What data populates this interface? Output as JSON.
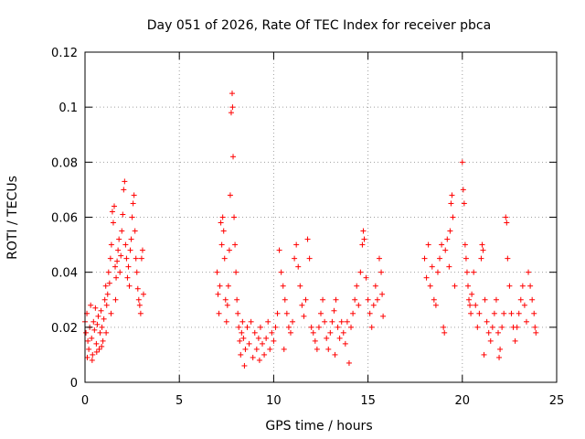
{
  "chart_data": {
    "type": "scatter",
    "title": "Day 051 of 2026, Rate Of TEC Index for receiver pbca",
    "xlabel": "GPS time / hours",
    "ylabel": "ROTI / TECUs",
    "xlim": [
      0,
      25
    ],
    "ylim": [
      0,
      0.12
    ],
    "xticks": [
      0,
      5,
      10,
      15,
      20,
      25
    ],
    "yticks": [
      0,
      0.02,
      0.04,
      0.06,
      0.08,
      0.1,
      0.12
    ],
    "xtick_labels": [
      "0",
      "5",
      "10",
      "15",
      "20",
      "25"
    ],
    "ytick_labels": [
      "0",
      "0.02",
      "0.04",
      "0.06",
      "0.08",
      "0.1",
      "0.12"
    ],
    "grid": true,
    "marker": "+",
    "color": "#ff0000",
    "series": [
      {
        "name": "ROTI",
        "points": [
          [
            0.0,
            0.022
          ],
          [
            0.05,
            0.018
          ],
          [
            0.1,
            0.025
          ],
          [
            0.15,
            0.015
          ],
          [
            0.2,
            0.012
          ],
          [
            0.25,
            0.02
          ],
          [
            0.3,
            0.028
          ],
          [
            0.35,
            0.016
          ],
          [
            0.4,
            0.01
          ],
          [
            0.45,
            0.022
          ],
          [
            0.5,
            0.019
          ],
          [
            0.55,
            0.027
          ],
          [
            0.6,
            0.014
          ],
          [
            0.65,
            0.021
          ],
          [
            0.7,
            0.024
          ],
          [
            0.75,
            0.012
          ],
          [
            0.8,
            0.018
          ],
          [
            0.85,
            0.026
          ],
          [
            0.9,
            0.02
          ],
          [
            0.95,
            0.015
          ],
          [
            1.0,
            0.023
          ],
          [
            1.05,
            0.03
          ],
          [
            1.1,
            0.035
          ],
          [
            1.15,
            0.028
          ],
          [
            1.2,
            0.032
          ],
          [
            1.25,
            0.04
          ],
          [
            1.3,
            0.036
          ],
          [
            1.35,
            0.045
          ],
          [
            1.4,
            0.05
          ],
          [
            1.45,
            0.062
          ],
          [
            1.5,
            0.058
          ],
          [
            1.55,
            0.064
          ],
          [
            1.6,
            0.042
          ],
          [
            1.65,
            0.038
          ],
          [
            1.7,
            0.044
          ],
          [
            1.75,
            0.048
          ],
          [
            1.8,
            0.052
          ],
          [
            1.85,
            0.04
          ],
          [
            1.9,
            0.046
          ],
          [
            1.95,
            0.055
          ],
          [
            2.0,
            0.061
          ],
          [
            2.05,
            0.07
          ],
          [
            2.1,
            0.073
          ],
          [
            2.15,
            0.05
          ],
          [
            2.2,
            0.045
          ],
          [
            2.25,
            0.038
          ],
          [
            2.3,
            0.042
          ],
          [
            2.35,
            0.035
          ],
          [
            2.4,
            0.048
          ],
          [
            2.45,
            0.052
          ],
          [
            2.5,
            0.06
          ],
          [
            2.55,
            0.065
          ],
          [
            2.6,
            0.068
          ],
          [
            2.65,
            0.055
          ],
          [
            2.7,
            0.045
          ],
          [
            2.75,
            0.04
          ],
          [
            2.8,
            0.034
          ],
          [
            2.85,
            0.03
          ],
          [
            2.9,
            0.028
          ],
          [
            2.95,
            0.025
          ],
          [
            3.0,
            0.045
          ],
          [
            3.05,
            0.048
          ],
          [
            3.1,
            0.032
          ],
          [
            0.12,
            0.009
          ],
          [
            0.38,
            0.008
          ],
          [
            0.62,
            0.011
          ],
          [
            0.88,
            0.013
          ],
          [
            1.12,
            0.018
          ],
          [
            1.38,
            0.025
          ],
          [
            1.62,
            0.03
          ],
          [
            7.0,
            0.04
          ],
          [
            7.05,
            0.032
          ],
          [
            7.1,
            0.025
          ],
          [
            7.15,
            0.035
          ],
          [
            7.2,
            0.058
          ],
          [
            7.25,
            0.05
          ],
          [
            7.3,
            0.06
          ],
          [
            7.35,
            0.055
          ],
          [
            7.4,
            0.045
          ],
          [
            7.45,
            0.03
          ],
          [
            7.5,
            0.022
          ],
          [
            7.55,
            0.028
          ],
          [
            7.6,
            0.035
          ],
          [
            7.65,
            0.048
          ],
          [
            7.7,
            0.068
          ],
          [
            7.75,
            0.098
          ],
          [
            7.8,
            0.105
          ],
          [
            7.82,
            0.1
          ],
          [
            7.85,
            0.082
          ],
          [
            7.9,
            0.06
          ],
          [
            7.95,
            0.05
          ],
          [
            8.0,
            0.04
          ],
          [
            8.05,
            0.03
          ],
          [
            8.1,
            0.025
          ],
          [
            8.15,
            0.02
          ],
          [
            8.2,
            0.015
          ],
          [
            8.25,
            0.01
          ],
          [
            8.3,
            0.018
          ],
          [
            8.35,
            0.022
          ],
          [
            8.4,
            0.016
          ],
          [
            8.5,
            0.012
          ],
          [
            8.6,
            0.02
          ],
          [
            8.7,
            0.014
          ],
          [
            8.8,
            0.022
          ],
          [
            8.9,
            0.009
          ],
          [
            9.0,
            0.018
          ],
          [
            9.1,
            0.012
          ],
          [
            9.2,
            0.016
          ],
          [
            9.3,
            0.02
          ],
          [
            9.4,
            0.014
          ],
          [
            9.5,
            0.01
          ],
          [
            9.6,
            0.016
          ],
          [
            9.7,
            0.022
          ],
          [
            9.8,
            0.012
          ],
          [
            9.9,
            0.018
          ],
          [
            10.0,
            0.015
          ],
          [
            10.1,
            0.02
          ],
          [
            10.2,
            0.025
          ],
          [
            10.3,
            0.048
          ],
          [
            10.4,
            0.04
          ],
          [
            10.5,
            0.035
          ],
          [
            10.6,
            0.03
          ],
          [
            10.7,
            0.025
          ],
          [
            10.8,
            0.02
          ],
          [
            10.9,
            0.018
          ],
          [
            11.0,
            0.022
          ],
          [
            11.1,
            0.045
          ],
          [
            11.2,
            0.05
          ],
          [
            11.3,
            0.042
          ],
          [
            11.4,
            0.035
          ],
          [
            11.5,
            0.028
          ],
          [
            11.6,
            0.024
          ],
          [
            11.7,
            0.03
          ],
          [
            11.8,
            0.052
          ],
          [
            11.9,
            0.045
          ],
          [
            12.0,
            0.02
          ],
          [
            12.1,
            0.018
          ],
          [
            12.2,
            0.015
          ],
          [
            12.3,
            0.012
          ],
          [
            12.4,
            0.02
          ],
          [
            12.5,
            0.025
          ],
          [
            12.6,
            0.03
          ],
          [
            12.7,
            0.022
          ],
          [
            12.8,
            0.016
          ],
          [
            12.9,
            0.012
          ],
          [
            13.0,
            0.018
          ],
          [
            13.1,
            0.022
          ],
          [
            13.2,
            0.026
          ],
          [
            13.3,
            0.03
          ],
          [
            13.4,
            0.02
          ],
          [
            13.5,
            0.016
          ],
          [
            13.6,
            0.022
          ],
          [
            13.7,
            0.018
          ],
          [
            13.8,
            0.014
          ],
          [
            13.9,
            0.022
          ],
          [
            14.0,
            0.007
          ],
          [
            14.1,
            0.02
          ],
          [
            14.2,
            0.025
          ],
          [
            14.3,
            0.03
          ],
          [
            14.4,
            0.035
          ],
          [
            14.5,
            0.028
          ],
          [
            14.6,
            0.04
          ],
          [
            14.7,
            0.05
          ],
          [
            14.75,
            0.055
          ],
          [
            14.8,
            0.052
          ],
          [
            14.9,
            0.038
          ],
          [
            15.0,
            0.03
          ],
          [
            15.1,
            0.025
          ],
          [
            15.2,
            0.02
          ],
          [
            15.3,
            0.028
          ],
          [
            15.4,
            0.035
          ],
          [
            15.5,
            0.03
          ],
          [
            15.6,
            0.045
          ],
          [
            15.7,
            0.04
          ],
          [
            15.75,
            0.032
          ],
          [
            15.8,
            0.024
          ],
          [
            8.45,
            0.006
          ],
          [
            9.25,
            0.008
          ],
          [
            10.55,
            0.012
          ],
          [
            13.25,
            0.01
          ],
          [
            18.0,
            0.045
          ],
          [
            18.1,
            0.038
          ],
          [
            18.2,
            0.05
          ],
          [
            18.3,
            0.035
          ],
          [
            18.4,
            0.042
          ],
          [
            18.5,
            0.03
          ],
          [
            18.6,
            0.028
          ],
          [
            18.7,
            0.04
          ],
          [
            18.8,
            0.045
          ],
          [
            18.9,
            0.05
          ],
          [
            19.0,
            0.02
          ],
          [
            19.05,
            0.018
          ],
          [
            19.1,
            0.048
          ],
          [
            19.2,
            0.052
          ],
          [
            19.3,
            0.042
          ],
          [
            19.35,
            0.055
          ],
          [
            19.4,
            0.065
          ],
          [
            19.45,
            0.068
          ],
          [
            19.5,
            0.06
          ],
          [
            19.6,
            0.035
          ],
          [
            20.0,
            0.08
          ],
          [
            20.05,
            0.07
          ],
          [
            20.1,
            0.065
          ],
          [
            20.15,
            0.05
          ],
          [
            20.2,
            0.045
          ],
          [
            20.25,
            0.04
          ],
          [
            20.3,
            0.035
          ],
          [
            20.35,
            0.03
          ],
          [
            20.4,
            0.028
          ],
          [
            20.45,
            0.025
          ],
          [
            20.5,
            0.032
          ],
          [
            20.6,
            0.04
          ],
          [
            20.7,
            0.028
          ],
          [
            20.8,
            0.02
          ],
          [
            20.9,
            0.025
          ],
          [
            21.0,
            0.045
          ],
          [
            21.05,
            0.05
          ],
          [
            21.1,
            0.048
          ],
          [
            21.2,
            0.03
          ],
          [
            21.3,
            0.022
          ],
          [
            21.4,
            0.018
          ],
          [
            21.5,
            0.015
          ],
          [
            21.6,
            0.02
          ],
          [
            21.7,
            0.025
          ],
          [
            21.8,
            0.03
          ],
          [
            21.9,
            0.018
          ],
          [
            22.0,
            0.012
          ],
          [
            22.1,
            0.02
          ],
          [
            22.2,
            0.025
          ],
          [
            22.3,
            0.06
          ],
          [
            22.35,
            0.058
          ],
          [
            22.4,
            0.045
          ],
          [
            22.5,
            0.035
          ],
          [
            22.6,
            0.025
          ],
          [
            22.7,
            0.02
          ],
          [
            22.8,
            0.015
          ],
          [
            22.9,
            0.02
          ],
          [
            23.0,
            0.025
          ],
          [
            23.1,
            0.03
          ],
          [
            23.2,
            0.035
          ],
          [
            23.3,
            0.028
          ],
          [
            23.4,
            0.022
          ],
          [
            23.5,
            0.04
          ],
          [
            23.6,
            0.035
          ],
          [
            23.7,
            0.03
          ],
          [
            23.8,
            0.025
          ],
          [
            23.85,
            0.02
          ],
          [
            23.9,
            0.018
          ],
          [
            21.15,
            0.01
          ],
          [
            21.95,
            0.009
          ]
        ]
      }
    ]
  }
}
